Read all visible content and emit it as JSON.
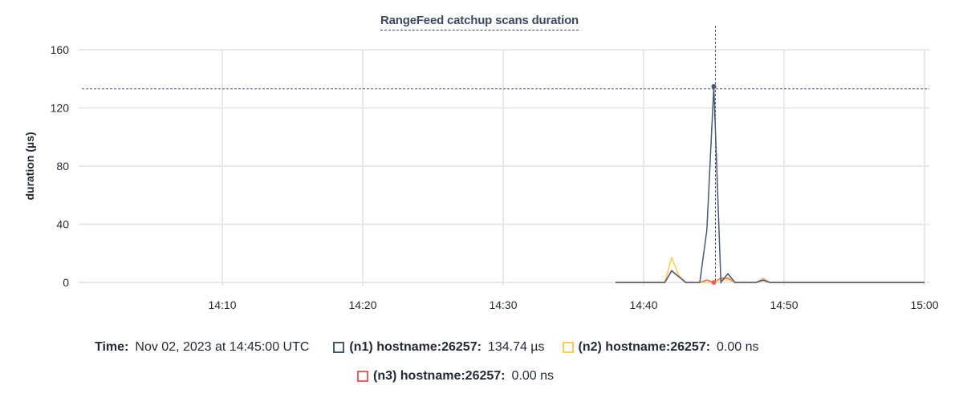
{
  "chart_data": {
    "type": "line",
    "title": "RangeFeed catchup scans duration",
    "ylabel": "duration (µs)",
    "xlabel": "",
    "xlim": [
      "14:00",
      "15:00"
    ],
    "ylim": [
      0,
      160
    ],
    "yticks": [
      0,
      40,
      80,
      120,
      160
    ],
    "xticks": [
      "14:10",
      "14:20",
      "14:30",
      "14:40",
      "14:50",
      "15:00"
    ],
    "grid": true,
    "x": [
      "14:38:00",
      "14:38:30",
      "14:39:00",
      "14:39:30",
      "14:40:00",
      "14:40:30",
      "14:41:00",
      "14:41:30",
      "14:42:00",
      "14:42:30",
      "14:43:00",
      "14:43:30",
      "14:44:00",
      "14:44:30",
      "14:45:00",
      "14:45:30",
      "14:46:00",
      "14:46:30",
      "14:47:00",
      "14:47:30",
      "14:48:00",
      "14:48:30",
      "14:49:00",
      "14:49:30",
      "14:50:00",
      "14:50:30",
      "14:51:00",
      "14:52:00",
      "14:53:00",
      "14:54:00",
      "14:55:00",
      "14:56:00",
      "14:57:00",
      "14:58:00",
      "14:59:00",
      "15:00:00"
    ],
    "series": [
      {
        "name": "(n1) hostname:26257",
        "color": "#475872",
        "values": [
          0,
          0,
          0,
          0,
          0,
          0,
          0,
          0,
          8,
          4,
          0,
          0,
          0,
          36,
          134.74,
          0,
          6,
          0,
          0,
          0,
          0,
          1.5,
          0,
          0,
          0,
          0,
          0,
          0,
          0,
          0,
          0,
          0,
          0,
          0,
          0,
          0
        ]
      },
      {
        "name": "(n2) hostname:26257",
        "color": "#ffcd4f",
        "values": [
          0,
          0,
          0,
          0,
          0,
          0,
          0,
          0,
          17,
          5,
          0,
          0,
          0,
          0,
          0,
          2,
          2,
          0,
          0,
          0,
          0,
          2,
          0,
          0,
          0,
          0,
          0,
          0,
          0,
          0,
          0,
          0,
          0,
          0,
          0,
          0
        ]
      },
      {
        "name": "(n3) hostname:26257",
        "color": "#f05d5e",
        "values": [
          0,
          0,
          0,
          0,
          0,
          0,
          0,
          0,
          8,
          4,
          0,
          0,
          0,
          1.6,
          0,
          3,
          3,
          0,
          0,
          0,
          0,
          2.5,
          0,
          0,
          0,
          0,
          0,
          0,
          0,
          0,
          0,
          0,
          0,
          0,
          0,
          0
        ]
      }
    ],
    "hover_time": "14:45:00"
  },
  "legend": {
    "time_label": "Time:",
    "time_value": "Nov 02, 2023 at 14:45:00 UTC",
    "items": [
      {
        "label": "(n1) hostname:26257:",
        "value": "134.74 µs",
        "color": "#475872"
      },
      {
        "label": "(n2) hostname:26257:",
        "value": "0.00 ns",
        "color": "#ffcd4f"
      },
      {
        "label": "(n3) hostname:26257:",
        "value": "0.00 ns",
        "color": "#f05d5e"
      }
    ]
  }
}
